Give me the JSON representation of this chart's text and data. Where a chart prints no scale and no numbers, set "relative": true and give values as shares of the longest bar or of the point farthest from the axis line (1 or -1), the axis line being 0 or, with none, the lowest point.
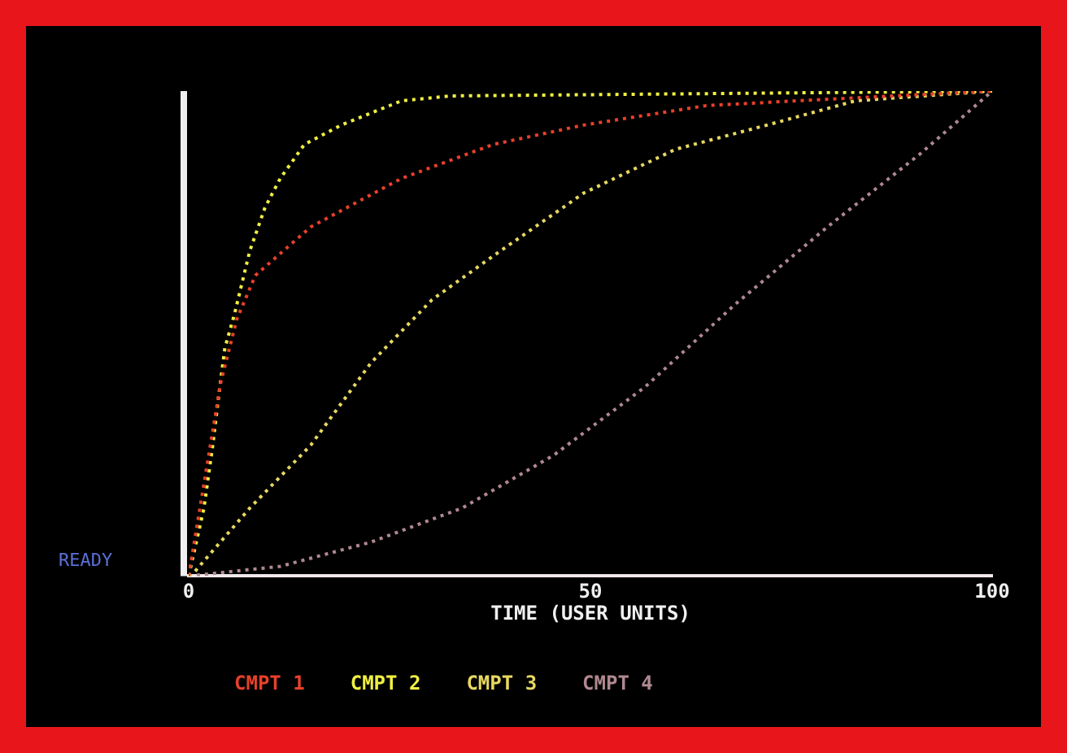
{
  "chart_data": {
    "type": "line",
    "relative": true,
    "xlabel": "TIME (USER UNITS)",
    "xlim": [
      0,
      100
    ],
    "xticks": [
      0,
      50,
      100
    ],
    "grid": false,
    "legend": "bottom",
    "line_style": "dotted",
    "marker": "none",
    "annotations": [
      "READY"
    ],
    "series": [
      {
        "name": "CMPT 1",
        "color": "#e8402a",
        "x": [
          0,
          2,
          4,
          6,
          8.3,
          15.2,
          26.5,
          37.9,
          49.2,
          64.4,
          75.8,
          100
        ],
        "values": [
          0,
          0.2,
          0.4,
          0.53,
          0.62,
          0.72,
          0.82,
          0.89,
          0.93,
          0.97,
          0.98,
          1
        ]
      },
      {
        "name": "CMPT 2",
        "color": "#f0f040",
        "x": [
          0,
          1.9,
          3,
          3.8,
          4.5,
          5.7,
          7.6,
          9.5,
          11.4,
          14.4,
          19,
          26.5,
          32.6,
          100
        ],
        "values": [
          0,
          0.14,
          0.27,
          0.38,
          0.47,
          0.54,
          0.67,
          0.76,
          0.82,
          0.89,
          0.93,
          0.98,
          0.99,
          1
        ]
      },
      {
        "name": "CMPT 3",
        "color": "#e8d860",
        "x": [
          0,
          0.8,
          7.6,
          15.2,
          22.7,
          30.3,
          37.9,
          49.2,
          60.6,
          72,
          83,
          100
        ],
        "values": [
          0,
          0.01,
          0.14,
          0.27,
          0.44,
          0.57,
          0.66,
          0.79,
          0.88,
          0.93,
          0.98,
          1
        ]
      },
      {
        "name": "CMPT 4",
        "color": "#b08890",
        "x": [
          0,
          11.4,
          22.7,
          34,
          45.5,
          56.8,
          68,
          79.5,
          91,
          100
        ],
        "values": [
          0,
          0.02,
          0.07,
          0.14,
          0.25,
          0.39,
          0.56,
          0.72,
          0.87,
          1
        ]
      }
    ]
  }
}
